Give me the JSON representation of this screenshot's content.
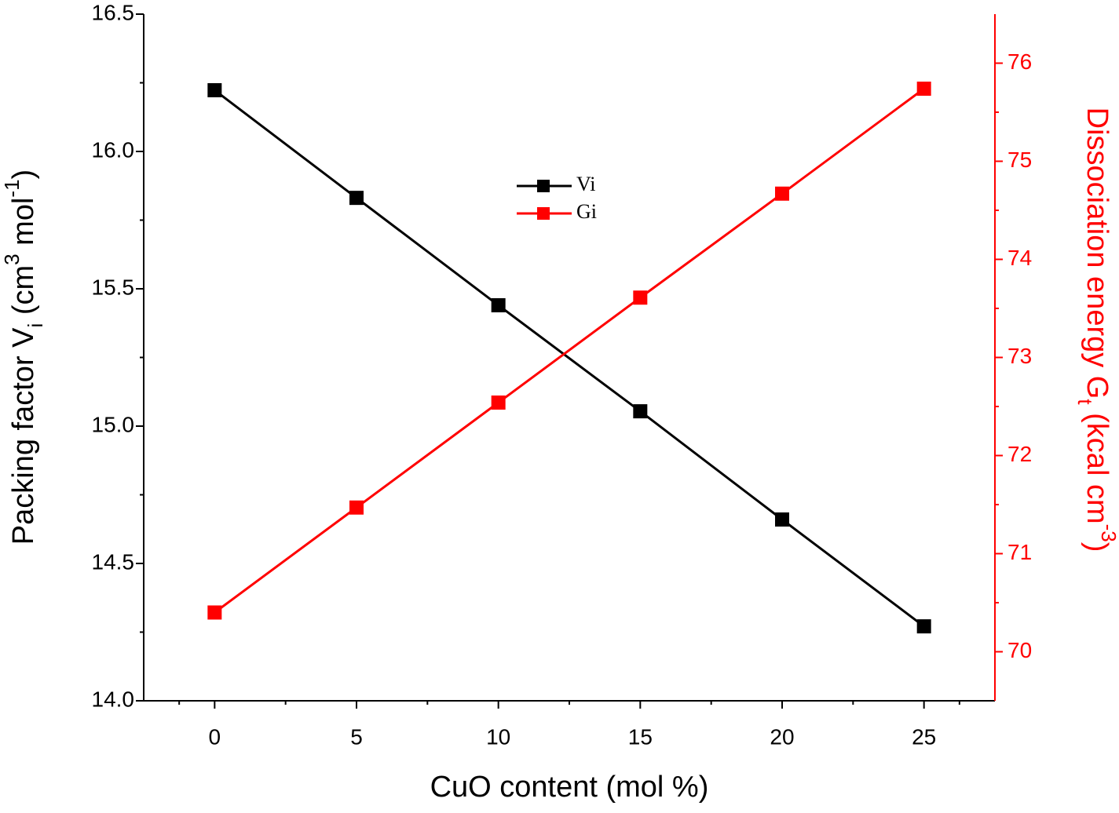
{
  "chart_data": {
    "type": "line",
    "x_label": "CuO content (mol %)",
    "y_label": [
      "Packing factor V",
      "i",
      " (cm",
      "3",
      " mol",
      "-1",
      ")"
    ],
    "y2_label": [
      "Dissociation energy G",
      "t",
      " (kcal cm",
      "-3",
      ")"
    ],
    "x": [
      0,
      5,
      10,
      15,
      20,
      25
    ],
    "xlim": [
      -2.5,
      27.5
    ],
    "xticks": [
      0,
      5,
      10,
      15,
      20,
      25
    ],
    "ylim": [
      14.0,
      16.5
    ],
    "yticks": [
      {
        "value": 14.0,
        "label": "14.0"
      },
      {
        "value": 14.5,
        "label": "14.5"
      },
      {
        "value": 15.0,
        "label": "15.0"
      },
      {
        "value": 15.5,
        "label": "15.5"
      },
      {
        "value": 16.0,
        "label": "16.0"
      },
      {
        "value": 16.5,
        "label": "16.5"
      }
    ],
    "y2lim": [
      69.5,
      76.5
    ],
    "y2ticks": [
      70,
      71,
      72,
      73,
      74,
      75,
      76
    ],
    "y2_color": "#ff0000",
    "legend_position": "center",
    "series": [
      {
        "name": "Vi",
        "color": "#000000",
        "values": [
          16.223,
          15.831,
          15.44,
          15.054,
          14.66,
          14.271
        ]
      },
      {
        "name": "Gi",
        "color": "#ff0000",
        "axis": "y2",
        "values": [
          70.4,
          71.47,
          72.54,
          73.61,
          74.67,
          75.74
        ]
      }
    ]
  }
}
